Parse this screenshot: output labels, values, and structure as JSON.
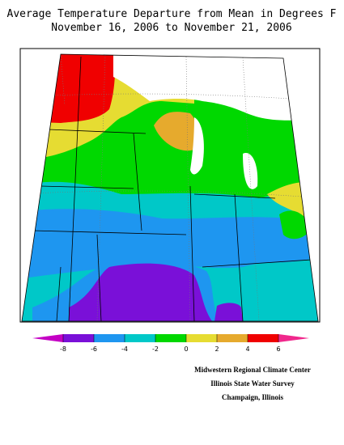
{
  "title": [
    "Average Temperature Departure from Mean in Degrees F",
    "November 16, 2006 to November 21, 2006"
  ],
  "colorbar": {
    "ticks": [
      -8,
      -6,
      -4,
      -2,
      0,
      2,
      4,
      6
    ],
    "colors": [
      "#c400c4",
      "#7a10d8",
      "#1e96f0",
      "#00c8c8",
      "#00d800",
      "#e6dc32",
      "#e6aa2d",
      "#f00000",
      "#f0288c"
    ]
  },
  "credits": [
    "Midwestern Regional Climate Center",
    "Illinois State Water Survey",
    "Champaign, Illinois"
  ]
}
